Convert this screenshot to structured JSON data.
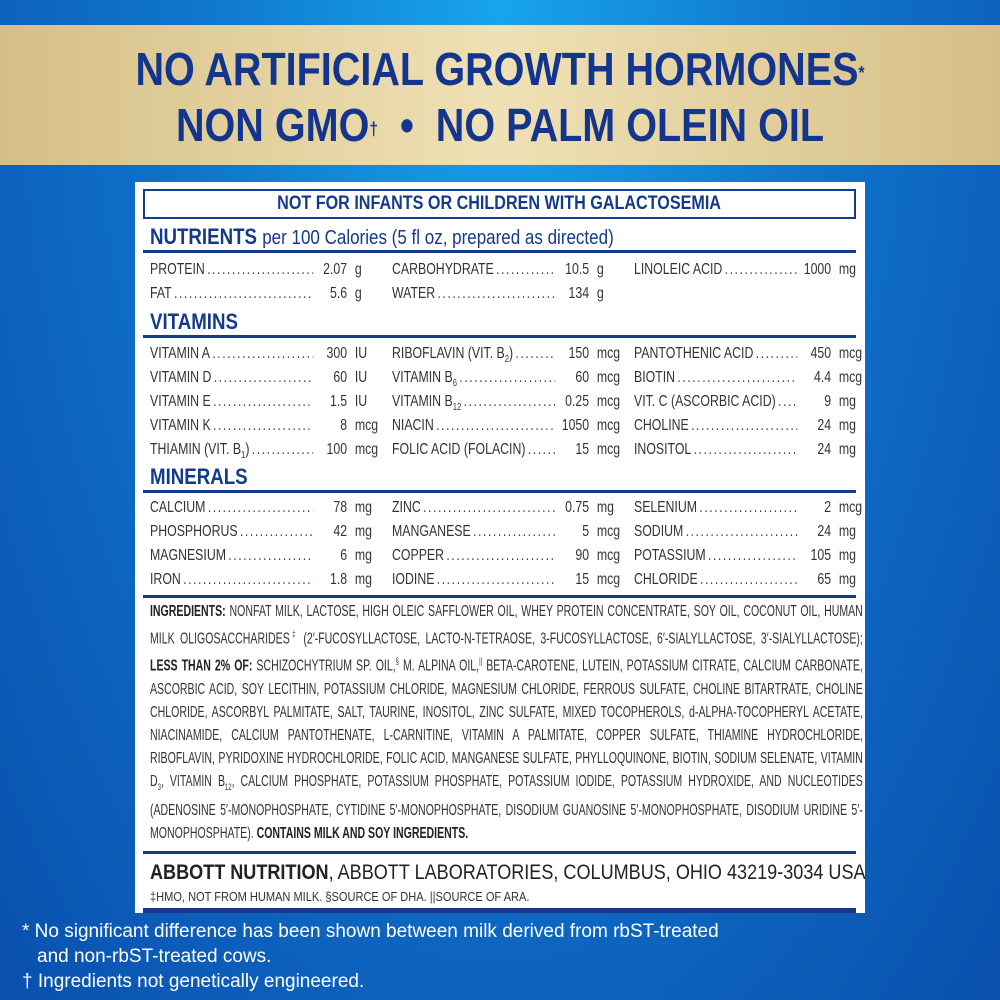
{
  "banner": {
    "line1": "NO ARTIFICIAL GROWTH HORMONES",
    "line1_mark": "*",
    "line2a": "NON GMO",
    "line2_mark": "†",
    "line2_sep": "•",
    "line2b": "NO PALM OLEIN OIL"
  },
  "label": {
    "warning": "NOT FOR INFANTS OR CHILDREN WITH GALACTOSEMIA",
    "nutrients_title": "NUTRIENTS",
    "nutrients_sub": "per 100 Calories (5 fl oz, prepared as directed)",
    "nutrients": [
      [
        {
          "n": "PROTEIN",
          "v": "2.07",
          "u": "g"
        },
        {
          "n": "FAT",
          "v": "5.6",
          "u": "g"
        }
      ],
      [
        {
          "n": "CARBOHYDRATE",
          "v": "10.5",
          "u": "g"
        },
        {
          "n": "WATER",
          "v": "134",
          "u": "g"
        }
      ],
      [
        {
          "n": "LINOLEIC ACID",
          "v": "1000",
          "u": "mg"
        }
      ]
    ],
    "vitamins_title": "VITAMINS",
    "vitamins": [
      [
        {
          "n": "VITAMIN A",
          "v": "300",
          "u": "IU"
        },
        {
          "n": "VITAMIN D",
          "v": "60",
          "u": "IU"
        },
        {
          "n": "VITAMIN E",
          "v": "1.5",
          "u": "IU"
        },
        {
          "n": "VITAMIN K",
          "v": "8",
          "u": "mcg"
        },
        {
          "n": "THIAMIN (VIT. B",
          "s": "1",
          "n2": ")",
          "v": "100",
          "u": "mcg"
        }
      ],
      [
        {
          "n": "RIBOFLAVIN (VIT. B",
          "s": "2",
          "n2": ")",
          "v": "150",
          "u": "mcg"
        },
        {
          "n": "VITAMIN B",
          "s": "6",
          "v": "60",
          "u": "mcg"
        },
        {
          "n": "VITAMIN B",
          "s": "12",
          "v": "0.25",
          "u": "mcg"
        },
        {
          "n": "NIACIN",
          "v": "1050",
          "u": "mcg"
        },
        {
          "n": "FOLIC ACID (FOLACIN)",
          "v": "15",
          "u": "mcg"
        }
      ],
      [
        {
          "n": "PANTOTHENIC ACID",
          "v": "450",
          "u": "mcg"
        },
        {
          "n": "BIOTIN",
          "v": "4.4",
          "u": "mcg"
        },
        {
          "n": "VIT. C (ASCORBIC ACID)",
          "v": "9",
          "u": "mg"
        },
        {
          "n": "CHOLINE",
          "v": "24",
          "u": "mg"
        },
        {
          "n": "INOSITOL",
          "v": "24",
          "u": "mg"
        }
      ]
    ],
    "minerals_title": "MINERALS",
    "minerals": [
      [
        {
          "n": "CALCIUM",
          "v": "78",
          "u": "mg"
        },
        {
          "n": "PHOSPHORUS",
          "v": "42",
          "u": "mg"
        },
        {
          "n": "MAGNESIUM",
          "v": "6",
          "u": "mg"
        },
        {
          "n": "IRON",
          "v": "1.8",
          "u": "mg"
        }
      ],
      [
        {
          "n": "ZINC",
          "v": "0.75",
          "u": "mg"
        },
        {
          "n": "MANGANESE",
          "v": "5",
          "u": "mcg"
        },
        {
          "n": "COPPER",
          "v": "90",
          "u": "mcg"
        },
        {
          "n": "IODINE",
          "v": "15",
          "u": "mcg"
        }
      ],
      [
        {
          "n": "SELENIUM",
          "v": "2",
          "u": "mcg"
        },
        {
          "n": "SODIUM",
          "v": "24",
          "u": "mg"
        },
        {
          "n": "POTASSIUM",
          "v": "105",
          "u": "mg"
        },
        {
          "n": "CHLORIDE",
          "v": "65",
          "u": "mg"
        }
      ]
    ],
    "ingredients": [
      {
        "t": "INGREDIENTS:",
        "b": true
      },
      {
        "t": " NONFAT MILK, LACTOSE, HIGH OLEIC SAFFLOWER OIL, WHEY PROTEIN CONCENTRATE, SOY OIL, COCONUT OIL, HUMAN MILK OLIGOSACCHARIDES"
      },
      {
        "t": "‡",
        "sup": true
      },
      {
        "t": " (2′-FUCOSYLLACTOSE, LACTO-N-TETRAOSE, 3-FUCOSYLLACTOSE, 6′-SIALYLLACTOSE, 3′-SIALYLLACTOSE); "
      },
      {
        "t": "LESS THAN 2% OF:",
        "b": true
      },
      {
        "t": " SCHIZOCHYTRIUM SP. OIL,"
      },
      {
        "t": "§",
        "sup": true
      },
      {
        "t": " M. ALPINA OIL,"
      },
      {
        "t": "||",
        "sup": true
      },
      {
        "t": " BETA-CAROTENE, LUTEIN, POTASSIUM CITRATE, CALCIUM CARBONATE, ASCORBIC ACID, SOY LECITHIN, POTASSIUM CHLORIDE, MAGNESIUM CHLORIDE, FERROUS SULFATE, CHOLINE BITARTRATE, CHOLINE CHLORIDE, ASCORBYL PALMITATE, SALT, TAURINE, INOSITOL, ZINC SULFATE, MIXED TOCOPHEROLS, d-ALPHA-TOCOPHERYL ACETATE, NIACINAMIDE, CALCIUM PANTOTHENATE, L-CARNITINE, VITAMIN A PALMITATE, COPPER SULFATE, THIAMINE HYDROCHLORIDE, RIBOFLAVIN, PYRIDOXINE HYDROCHLORIDE, FOLIC ACID, MANGANESE SULFATE, PHYLLOQUINONE, BIOTIN, SODIUM SELENATE, VITAMIN D"
      },
      {
        "t": "3",
        "sub": true
      },
      {
        "t": ", VITAMIN B"
      },
      {
        "t": "12",
        "sub": true
      },
      {
        "t": ", CALCIUM PHOSPHATE, POTASSIUM PHOSPHATE, POTASSIUM IODIDE, POTASSIUM HYDROXIDE, AND NUCLEOTIDES (ADENOSINE 5′-MONOPHOSPHATE, CYTIDINE 5′-MONOPHOSPHATE, DISODIUM GUANOSINE 5′-MONOPHOSPHATE, DISODIUM URIDINE 5′-MONOPHOSPHATE). "
      },
      {
        "t": "CONTAINS MILK AND SOY INGREDIENTS.",
        "b": true
      }
    ],
    "manufacturer_bold": "ABBOTT NUTRITION",
    "manufacturer_rest": ", ABBOTT LABORATORIES, COLUMBUS, OHIO 43219-3034 USA",
    "footnotes": "‡HMO, NOT FROM HUMAN MILK. §SOURCE OF DHA. ||SOURCE OF ARA."
  },
  "disclaimers": [
    "* No significant difference has been shown between milk derived from rbST-treated",
    "   and non-rbST-treated cows.",
    "† Ingredients not genetically engineered."
  ],
  "colors": {
    "navy": "#143a8c",
    "gold": "#e6d49f",
    "blue": "#0f74cc"
  }
}
